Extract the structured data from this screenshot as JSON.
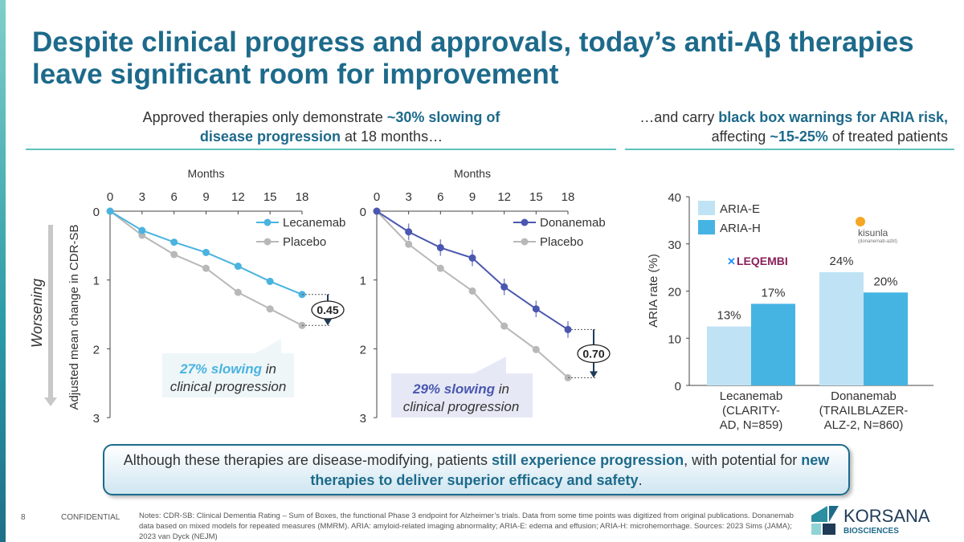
{
  "title": "Despite clinical progress and approvals, today’s anti-Aβ therapies leave significant room for improvement",
  "left_sub": {
    "t1": "Approved therapies only demonstrate ",
    "b1": "~30% slowing of disease progression",
    "t2": " at 18 months…"
  },
  "right_sub": {
    "t1": "…and carry ",
    "b1": "black box warnings for ARIA risk,",
    "t2": " affecting ",
    "b2": "~15-25%",
    "t3": " of treated patients"
  },
  "worsening_label": "Worsening",
  "callouts": [
    {
      "b": "27% slowing",
      "t": " in clinical progression",
      "color": "#4ab3df"
    },
    {
      "b": "29% slowing",
      "t": " in clinical progression",
      "color": "#4a57b0"
    }
  ],
  "bottom": {
    "t1": "Although these therapies are disease-modifying, patients ",
    "b1": "still experience progression",
    "t2": ", with potential for ",
    "b2": "new therapies to deliver superior efficacy and safety",
    "t3": "."
  },
  "footer": {
    "page": "8",
    "confidential": "CONFIDENTIAL",
    "notes": "Notes: CDR-SB: Clinical Dementia Rating – Sum of Boxes, the functional Phase 3 endpoint for Alzheimer’s trials. Data from some time points was digitized from original publications. Donanemab data based on mixed models for repeated measures (MMRM). ARIA: amyloid-related imaging abnormality; ARIA-E: edema and effusion; ARIA-H: microhemorrhage. Sources: 2023 Sims (JAMA); 2023 van Dyck (NEJM)",
    "logo": "KORSANA BIOSCIENCES"
  },
  "logos": {
    "leqembi": "LEQEMBI lecanemab-irmb",
    "kisunla": "kisunla (donanemab-azbt) injection for IV infusion"
  },
  "chart_data": [
    {
      "type": "line",
      "xlabel": "Months",
      "ylabel": "Adjusted mean change in CDR-SB",
      "x": [
        0,
        3,
        6,
        9,
        12,
        15,
        18
      ],
      "xlim": [
        0,
        18
      ],
      "ylim": [
        0,
        3
      ],
      "yticks": [
        0,
        1,
        2,
        3
      ],
      "y_inverted": true,
      "legend": "top-right",
      "difference_label": "0.45",
      "series": [
        {
          "name": "Lecanemab",
          "color": "#4ab3df",
          "values": [
            0,
            0.28,
            0.45,
            0.6,
            0.8,
            1.02,
            1.21
          ]
        },
        {
          "name": "Placebo",
          "color": "#b8b8b8",
          "values": [
            0,
            0.35,
            0.63,
            0.83,
            1.18,
            1.42,
            1.66
          ]
        }
      ]
    },
    {
      "type": "line",
      "xlabel": "Months",
      "x": [
        0,
        3,
        6,
        9,
        12,
        15,
        18
      ],
      "xlim": [
        0,
        18
      ],
      "ylim": [
        0,
        3
      ],
      "yticks": [
        0,
        1,
        2,
        3
      ],
      "y_inverted": true,
      "legend": "top-right",
      "difference_label": "0.70",
      "series": [
        {
          "name": "Donanemab",
          "color": "#4a57b0",
          "values": [
            0,
            0.3,
            0.53,
            0.68,
            1.1,
            1.42,
            1.72
          ]
        },
        {
          "name": "Placebo",
          "color": "#b8b8b8",
          "values": [
            0,
            0.48,
            0.83,
            1.16,
            1.67,
            2.01,
            2.42
          ]
        }
      ]
    },
    {
      "type": "bar",
      "ylabel": "ARIA rate (%)",
      "ylim": [
        0,
        40
      ],
      "yticks": [
        0,
        10,
        20,
        30,
        40
      ],
      "legend": "top-left",
      "categories": [
        "Lecanemab (CLARITY-AD, N=859)",
        "Donanemab (TRAILBLAZER-ALZ-2, N=860)"
      ],
      "category_lines": [
        [
          "Lecanemab",
          "(CLARITY-",
          "AD, N=859)"
        ],
        [
          "Donanemab",
          "(TRAILBLAZER-",
          "ALZ-2, N=860)"
        ]
      ],
      "series": [
        {
          "name": "ARIA-E",
          "color": "#bfe3f4",
          "values": [
            12.5,
            24
          ],
          "labels": [
            "13%",
            "24%"
          ]
        },
        {
          "name": "ARIA-H",
          "color": "#45b4e3",
          "values": [
            17.3,
            19.7
          ],
          "labels": [
            "17%",
            "20%"
          ]
        }
      ]
    }
  ]
}
